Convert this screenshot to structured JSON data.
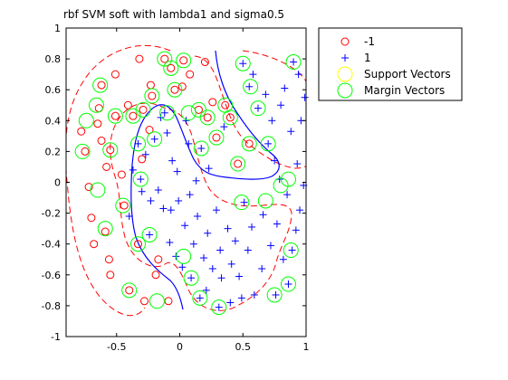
{
  "chart_data": {
    "type": "scatter",
    "title": "rbf SVM soft with lambda1 and sigma0.5",
    "xlim": [
      -0.9,
      1.0
    ],
    "ylim": [
      -1.0,
      1.0
    ],
    "xticks": [
      -0.5,
      0,
      0.5,
      1
    ],
    "yticks": [
      -1,
      -0.8,
      -0.6,
      -0.4,
      -0.2,
      0,
      0.2,
      0.4,
      0.6,
      0.8,
      1
    ],
    "xtick_labels": [
      "-0.5",
      "0",
      "0.5",
      "1"
    ],
    "ytick_labels": [
      "-1",
      "-0.8",
      "-0.6",
      "-0.4",
      "-0.2",
      "0",
      "0.2",
      "0.4",
      "0.6",
      "0.8",
      "1"
    ],
    "grid": false,
    "legend_position": "outside-top-right",
    "legend": [
      {
        "label": "-1",
        "marker": "circle",
        "color": "#ff0000"
      },
      {
        "label": "1",
        "marker": "plus",
        "color": "#0000ff"
      },
      {
        "label": "Support Vectors",
        "marker": "big-circle",
        "color": "#ffff00"
      },
      {
        "label": "Margin Vectors",
        "marker": "big-circle",
        "color": "#00ff00"
      }
    ],
    "colors": {
      "neg": "#ff0000",
      "pos": "#0000ff",
      "support": "#ffff00",
      "margin": "#00ff00",
      "boundary": "#0000ff",
      "margin_line": "#ff0000"
    },
    "series": [
      {
        "name": "-1",
        "points": [
          [
            -0.78,
            0.33
          ],
          [
            -0.75,
            0.2
          ],
          [
            -0.72,
            -0.03
          ],
          [
            -0.7,
            -0.23
          ],
          [
            -0.68,
            -0.4
          ],
          [
            -0.65,
            0.38
          ],
          [
            -0.64,
            0.48
          ],
          [
            -0.62,
            0.27
          ],
          [
            -0.62,
            0.63
          ],
          [
            -0.59,
            -0.32
          ],
          [
            -0.58,
            0.1
          ],
          [
            -0.56,
            -0.5
          ],
          [
            -0.55,
            -0.6
          ],
          [
            -0.55,
            0.21
          ],
          [
            -0.51,
            0.7
          ],
          [
            -0.51,
            0.43
          ],
          [
            -0.46,
            0.05
          ],
          [
            -0.44,
            -0.15
          ],
          [
            -0.41,
            0.5
          ],
          [
            -0.4,
            -0.7
          ],
          [
            -0.37,
            0.43
          ],
          [
            -0.33,
            -0.4
          ],
          [
            -0.32,
            0.8
          ],
          [
            -0.3,
            0.15
          ],
          [
            -0.29,
            0.47
          ],
          [
            -0.28,
            -0.77
          ],
          [
            -0.24,
            0.34
          ],
          [
            -0.23,
            0.63
          ],
          [
            -0.22,
            0.56
          ],
          [
            -0.19,
            -0.6
          ],
          [
            -0.17,
            -0.5
          ],
          [
            -0.12,
            0.8
          ],
          [
            -0.09,
            -0.77
          ],
          [
            -0.07,
            0.74
          ],
          [
            -0.04,
            0.6
          ],
          [
            0.02,
            0.62
          ],
          [
            0.03,
            0.79
          ],
          [
            0.08,
            0.7
          ],
          [
            0.15,
            0.47
          ],
          [
            0.2,
            0.78
          ],
          [
            0.22,
            0.42
          ],
          [
            0.26,
            0.52
          ],
          [
            0.29,
            0.29
          ],
          [
            0.36,
            0.5
          ],
          [
            0.4,
            0.42
          ],
          [
            0.46,
            0.12
          ],
          [
            0.55,
            0.25
          ]
        ]
      },
      {
        "name": "1",
        "points": [
          [
            -0.4,
            -0.22
          ],
          [
            -0.37,
            0.08
          ],
          [
            -0.33,
            0.25
          ],
          [
            -0.31,
            0.02
          ],
          [
            -0.3,
            -0.06
          ],
          [
            -0.27,
            0.18
          ],
          [
            -0.24,
            -0.34
          ],
          [
            -0.23,
            -0.12
          ],
          [
            -0.2,
            0.28
          ],
          [
            -0.17,
            -0.05
          ],
          [
            -0.15,
            0.42
          ],
          [
            -0.13,
            -0.17
          ],
          [
            -0.12,
            0.45
          ],
          [
            -0.1,
            0.32
          ],
          [
            -0.08,
            -0.39
          ],
          [
            -0.07,
            -0.18
          ],
          [
            -0.06,
            0.14
          ],
          [
            -0.03,
            -0.48
          ],
          [
            -0.02,
            0.07
          ],
          [
            -0.01,
            -0.12
          ],
          [
            0.02,
            -0.55
          ],
          [
            0.04,
            -0.28
          ],
          [
            0.05,
            0.4
          ],
          [
            0.07,
            0.25
          ],
          [
            0.08,
            -0.08
          ],
          [
            0.09,
            -0.62
          ],
          [
            0.11,
            -0.4
          ],
          [
            0.13,
            0.01
          ],
          [
            0.14,
            -0.22
          ],
          [
            0.16,
            -0.75
          ],
          [
            0.17,
            0.22
          ],
          [
            0.19,
            -0.49
          ],
          [
            0.21,
            -0.7
          ],
          [
            0.22,
            -0.33
          ],
          [
            0.23,
            0.09
          ],
          [
            0.26,
            -0.56
          ],
          [
            0.29,
            -0.18
          ],
          [
            0.31,
            -0.81
          ],
          [
            0.32,
            -0.44
          ],
          [
            0.33,
            -0.62
          ],
          [
            0.35,
            0.36
          ],
          [
            0.38,
            -0.3
          ],
          [
            0.4,
            -0.78
          ],
          [
            0.41,
            -0.53
          ],
          [
            0.44,
            -0.38
          ],
          [
            0.47,
            -0.61
          ],
          [
            0.49,
            -0.75
          ],
          [
            0.5,
            0.77
          ],
          [
            0.51,
            -0.13
          ],
          [
            0.54,
            -0.44
          ],
          [
            0.55,
            0.62
          ],
          [
            0.57,
            -0.29
          ],
          [
            0.58,
            0.7
          ],
          [
            0.59,
            -0.73
          ],
          [
            0.62,
            0.48
          ],
          [
            0.65,
            -0.56
          ],
          [
            0.66,
            -0.21
          ],
          [
            0.68,
            0.57
          ],
          [
            0.7,
            0.25
          ],
          [
            0.72,
            -0.41
          ],
          [
            0.73,
            0.4
          ],
          [
            0.75,
            0.14
          ],
          [
            0.76,
            -0.73
          ],
          [
            0.77,
            -0.27
          ],
          [
            0.79,
            0.02
          ],
          [
            0.8,
            0.5
          ],
          [
            0.82,
            -0.5
          ],
          [
            0.83,
            0.61
          ],
          [
            0.85,
            -0.08
          ],
          [
            0.86,
            -0.66
          ],
          [
            0.88,
            0.33
          ],
          [
            0.89,
            -0.44
          ],
          [
            0.9,
            0.78
          ],
          [
            0.92,
            -0.31
          ],
          [
            0.93,
            0.12
          ],
          [
            0.94,
            0.7
          ],
          [
            0.95,
            -0.18
          ],
          [
            0.96,
            0.4
          ],
          [
            0.98,
            -0.02
          ],
          [
            0.99,
            0.55
          ]
        ]
      },
      {
        "name": "Margin Vectors",
        "points": [
          [
            -0.77,
            0.2
          ],
          [
            -0.74,
            0.4
          ],
          [
            -0.66,
            0.5
          ],
          [
            -0.65,
            -0.05
          ],
          [
            -0.63,
            0.63
          ],
          [
            -0.59,
            -0.3
          ],
          [
            -0.55,
            0.21
          ],
          [
            -0.51,
            0.43
          ],
          [
            -0.45,
            -0.15
          ],
          [
            -0.4,
            -0.7
          ],
          [
            -0.37,
            0.43
          ],
          [
            -0.33,
            -0.4
          ],
          [
            -0.29,
            0.47
          ],
          [
            -0.22,
            0.56
          ],
          [
            -0.18,
            -0.77
          ],
          [
            -0.12,
            0.8
          ],
          [
            -0.07,
            0.74
          ],
          [
            -0.04,
            0.6
          ],
          [
            0.03,
            0.79
          ],
          [
            0.15,
            0.47
          ],
          [
            0.22,
            0.42
          ],
          [
            0.29,
            0.29
          ],
          [
            0.36,
            0.5
          ],
          [
            0.4,
            0.42
          ],
          [
            0.46,
            0.12
          ],
          [
            0.55,
            0.25
          ],
          [
            0.07,
            0.45
          ],
          [
            -0.1,
            0.45
          ],
          [
            -0.31,
            0.02
          ],
          [
            -0.33,
            0.25
          ],
          [
            -0.24,
            -0.34
          ],
          [
            -0.2,
            0.28
          ],
          [
            0.17,
            0.22
          ],
          [
            0.03,
            -0.48
          ],
          [
            0.09,
            -0.62
          ],
          [
            0.16,
            -0.75
          ],
          [
            0.31,
            -0.81
          ],
          [
            0.49,
            -0.13
          ],
          [
            0.56,
            0.62
          ],
          [
            0.5,
            0.77
          ],
          [
            0.62,
            0.48
          ],
          [
            0.7,
            0.25
          ],
          [
            0.68,
            -0.12
          ],
          [
            0.8,
            -0.02
          ],
          [
            0.86,
            0.02
          ],
          [
            0.88,
            -0.44
          ],
          [
            0.86,
            -0.66
          ],
          [
            0.75,
            -0.73
          ],
          [
            0.9,
            0.78
          ]
        ]
      }
    ]
  }
}
